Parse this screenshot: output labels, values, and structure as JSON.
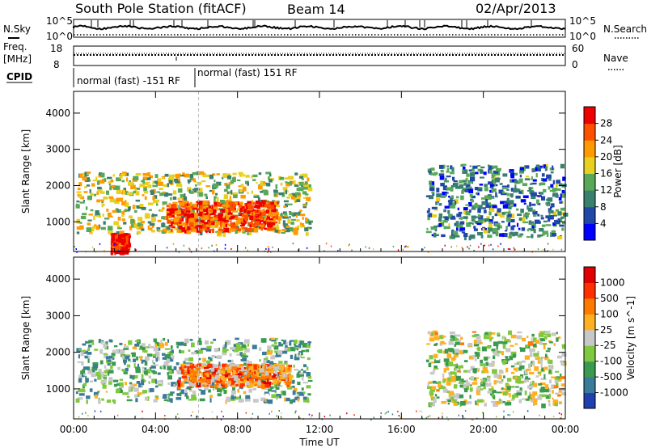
{
  "header": {
    "station": "South Pole Station (fitACF)",
    "beam": "Beam 14",
    "date": "02/Apr/2013"
  },
  "top_panels": {
    "nsky_label": "N.Sky",
    "nsearch_label": "N.Search",
    "noise_ticks_left": [
      "10^5",
      "10^0"
    ],
    "noise_ticks_right": [
      "10^5",
      "10^0"
    ],
    "freq_label_1": "Freq.",
    "freq_label_2": "[MHz]",
    "freq_ticks": [
      "18",
      "8"
    ],
    "nave_label": "Nave",
    "nave_ticks": [
      "60",
      "0"
    ],
    "cpid_label": "CPID",
    "cpid_segments": [
      "normal (fast) -151 RF",
      "normal (fast) 151 RF"
    ]
  },
  "chart_data": [
    {
      "type": "heatmap",
      "panel": "power",
      "ylabel": "Slant Range [km]",
      "xlabel": "Time UT",
      "x_ticks": [
        "00:00",
        "04:00",
        "08:00",
        "12:00",
        "16:00",
        "20:00",
        "00:00"
      ],
      "x_range_hours": [
        0,
        24
      ],
      "y_ticks": [
        "1000",
        "2000",
        "3000",
        "4000"
      ],
      "y_range_km": [
        180,
        4600
      ],
      "colorbar_label": "Power [dB]",
      "colorbar_ticks": [
        "4",
        "8",
        "12",
        "16",
        "20",
        "24",
        "28"
      ],
      "colorbar_colors": [
        "#0000ff",
        "#2048a8",
        "#3a8070",
        "#58a858",
        "#e8d020",
        "#ff9a00",
        "#ff5000",
        "#ee0000"
      ],
      "echo_regions": [
        {
          "t0": 0.1,
          "t1": 11.5,
          "r0": 700,
          "r1": 2400,
          "level": 0.5
        },
        {
          "t0": 4.5,
          "t1": 9.8,
          "r0": 800,
          "r1": 1600,
          "level": 0.85
        },
        {
          "t0": 1.8,
          "t1": 2.6,
          "r0": 200,
          "r1": 700,
          "level": 0.95
        },
        {
          "t0": 17.2,
          "t1": 23.9,
          "r0": 600,
          "r1": 2600,
          "level": 0.3
        }
      ]
    },
    {
      "type": "heatmap",
      "panel": "velocity",
      "ylabel": "Slant Range [km]",
      "xlabel": "Time UT",
      "x_ticks": [
        "00:00",
        "04:00",
        "08:00",
        "12:00",
        "16:00",
        "20:00",
        "00:00"
      ],
      "x_range_hours": [
        0,
        24
      ],
      "y_ticks": [
        "1000",
        "2000",
        "3000",
        "4000"
      ],
      "y_range_km": [
        180,
        4600
      ],
      "colorbar_label": "Velocity [m s^-1]",
      "colorbar_ticks": [
        "1000",
        "500",
        "100",
        "25",
        "-25",
        "-100",
        "-500",
        "-1000"
      ],
      "colorbar_colors": [
        "#2040b0",
        "#3a7a9a",
        "#3a9a50",
        "#80c840",
        "#c8c8c8",
        "#ffb020",
        "#ff7a00",
        "#ff3000",
        "#e00000"
      ],
      "echo_regions": [
        {
          "t0": 0.1,
          "t1": 11.5,
          "r0": 700,
          "r1": 2400,
          "level": 0.35
        },
        {
          "t0": 5.0,
          "t1": 10.5,
          "r0": 1100,
          "r1": 1700,
          "level": 0.7
        },
        {
          "t0": 17.2,
          "t1": 23.9,
          "r0": 600,
          "r1": 2600,
          "level": 0.45
        }
      ]
    }
  ]
}
